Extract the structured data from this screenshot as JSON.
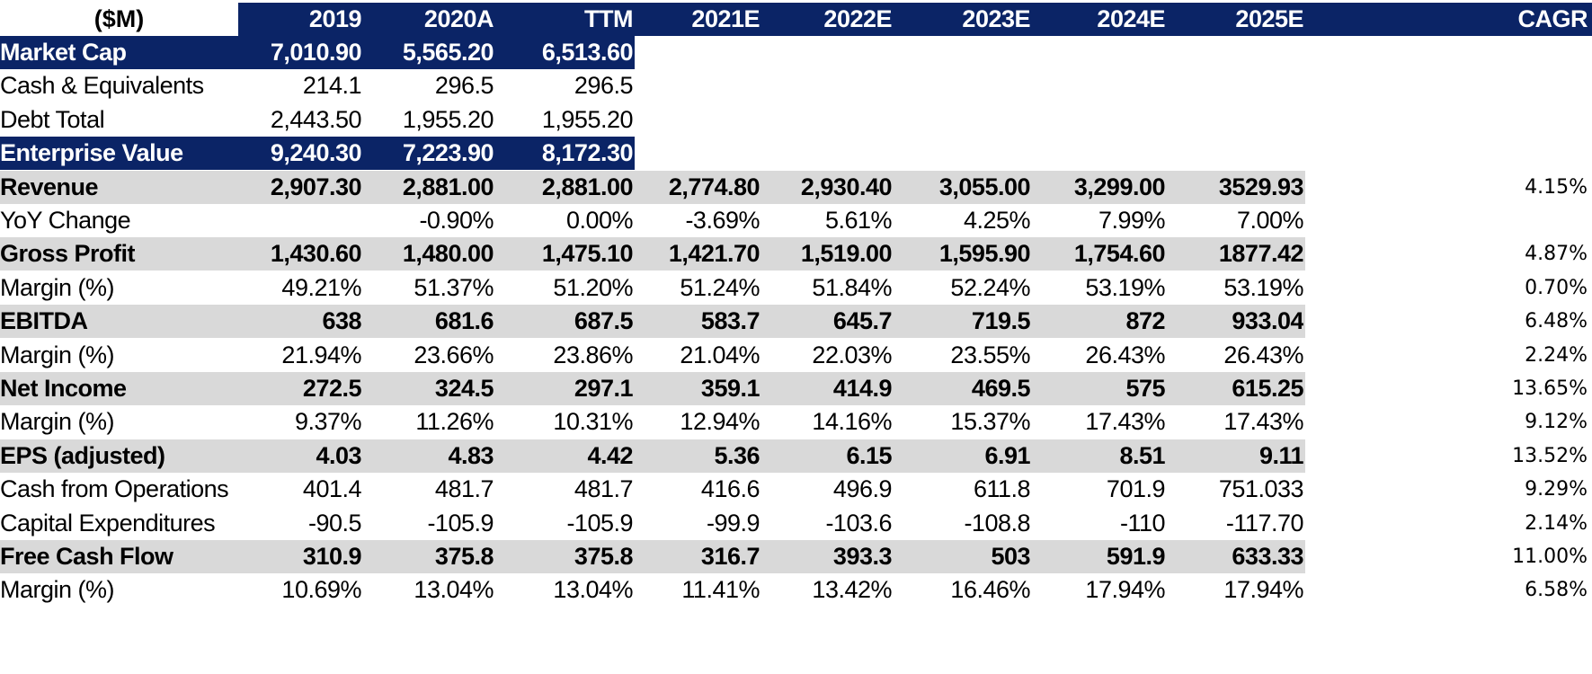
{
  "header": {
    "label": "($M)",
    "columns": [
      "2019",
      "2020A",
      "TTM",
      "2021E",
      "2022E",
      "2023E",
      "2024E",
      "2025E",
      "CAGR"
    ]
  },
  "rows": [
    {
      "label": "Market Cap",
      "values": [
        "7,010.90",
        "5,565.20",
        "6,513.60",
        "",
        "",
        "",
        "",
        ""
      ],
      "cagr": "",
      "style": "navy"
    },
    {
      "label": "Cash & Equivalents",
      "values": [
        "214.1",
        "296.5",
        "296.5",
        "",
        "",
        "",
        "",
        ""
      ],
      "cagr": "",
      "style": "plain"
    },
    {
      "label": "Debt Total",
      "values": [
        "2,443.50",
        "1,955.20",
        "1,955.20",
        "",
        "",
        "",
        "",
        ""
      ],
      "cagr": "",
      "style": "plain"
    },
    {
      "label": "Enterprise Value",
      "values": [
        "9,240.30",
        "7,223.90",
        "8,172.30",
        "",
        "",
        "",
        "",
        ""
      ],
      "cagr": "",
      "style": "navy"
    },
    {
      "label": "Revenue",
      "values": [
        "2,907.30",
        "2,881.00",
        "2,881.00",
        "2,774.80",
        "2,930.40",
        "3,055.00",
        "3,299.00",
        "3529.93"
      ],
      "cagr": "4.15%",
      "style": "grey"
    },
    {
      "label": "YoY Change",
      "values": [
        "",
        "-0.90%",
        "0.00%",
        "-3.69%",
        "5.61%",
        "4.25%",
        "7.99%",
        "7.00%"
      ],
      "cagr": "",
      "style": "plain"
    },
    {
      "label": "Gross Profit",
      "values": [
        "1,430.60",
        "1,480.00",
        "1,475.10",
        "1,421.70",
        "1,519.00",
        "1,595.90",
        "1,754.60",
        "1877.42"
      ],
      "cagr": "4.87%",
      "style": "grey"
    },
    {
      "label": "Margin (%)",
      "values": [
        "49.21%",
        "51.37%",
        "51.20%",
        "51.24%",
        "51.84%",
        "52.24%",
        "53.19%",
        "53.19%"
      ],
      "cagr": "0.70%",
      "style": "plain"
    },
    {
      "label": "EBITDA",
      "values": [
        "638",
        "681.6",
        "687.5",
        "583.7",
        "645.7",
        "719.5",
        "872",
        "933.04"
      ],
      "cagr": "6.48%",
      "style": "grey"
    },
    {
      "label": "Margin (%)",
      "values": [
        "21.94%",
        "23.66%",
        "23.86%",
        "21.04%",
        "22.03%",
        "23.55%",
        "26.43%",
        "26.43%"
      ],
      "cagr": "2.24%",
      "style": "plain"
    },
    {
      "label": "Net Income",
      "values": [
        "272.5",
        "324.5",
        "297.1",
        "359.1",
        "414.9",
        "469.5",
        "575",
        "615.25"
      ],
      "cagr": "13.65%",
      "style": "grey"
    },
    {
      "label": "Margin (%)",
      "values": [
        "9.37%",
        "11.26%",
        "10.31%",
        "12.94%",
        "14.16%",
        "15.37%",
        "17.43%",
        "17.43%"
      ],
      "cagr": "9.12%",
      "style": "plain"
    },
    {
      "label": "EPS (adjusted)",
      "values": [
        "4.03",
        "4.83",
        "4.42",
        "5.36",
        "6.15",
        "6.91",
        "8.51",
        "9.11"
      ],
      "cagr": "13.52%",
      "style": "grey"
    },
    {
      "label": "Cash from Operations",
      "values": [
        "401.4",
        "481.7",
        "481.7",
        "416.6",
        "496.9",
        "611.8",
        "701.9",
        "751.033"
      ],
      "cagr": "9.29%",
      "style": "plain"
    },
    {
      "label": "Capital Expenditures",
      "values": [
        "-90.5",
        "-105.9",
        "-105.9",
        "-99.9",
        "-103.6",
        "-108.8",
        "-110",
        "-117.70"
      ],
      "cagr": "2.14%",
      "style": "plain"
    },
    {
      "label": "Free Cash Flow",
      "values": [
        "310.9",
        "375.8",
        "375.8",
        "316.7",
        "393.3",
        "503",
        "591.9",
        "633.33"
      ],
      "cagr": "11.00%",
      "style": "grey"
    },
    {
      "label": "Margin (%)",
      "values": [
        "10.69%",
        "13.04%",
        "13.04%",
        "11.41%",
        "13.42%",
        "16.46%",
        "17.94%",
        "17.94%"
      ],
      "cagr": "6.58%",
      "style": "plain"
    }
  ],
  "colors": {
    "navy": "#0b2466",
    "grey": "#d9d9d9",
    "white": "#ffffff",
    "black": "#000000"
  }
}
